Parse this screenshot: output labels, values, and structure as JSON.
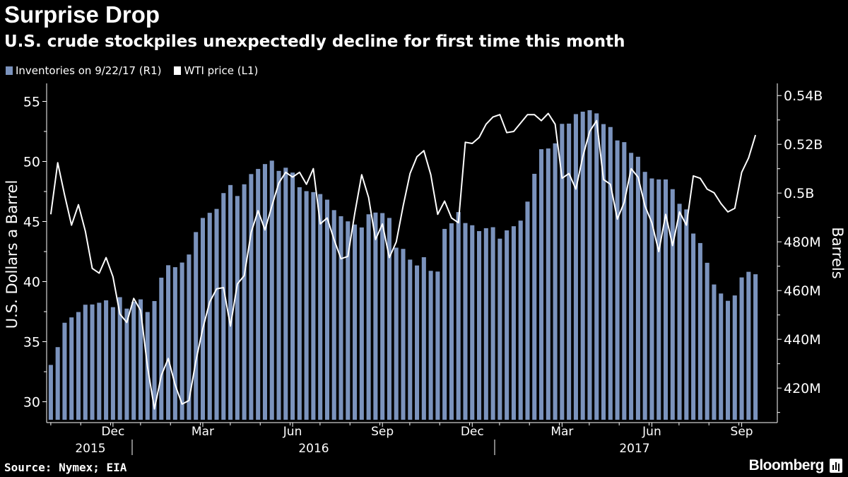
{
  "header": {
    "title": "Surprise Drop",
    "subtitle": "U.S. crude stockpiles unexpectedly decline for first time this month"
  },
  "legend": {
    "inventories": "Inventories on 9/22/17 (R1)",
    "wti": "WTI price (L1)"
  },
  "footer": {
    "source": "Source: Nymex; EIA",
    "brand": "Bloomberg"
  },
  "colors": {
    "bar": "#7b93bd",
    "line": "#ffffff",
    "background": "#000000",
    "axis": "#ffffff"
  },
  "chart_data": {
    "type": "bar",
    "title": "Surprise Drop",
    "subtitle": "U.S. crude stockpiles unexpectedly decline for first time this month",
    "ylabel_left": "U.S. Dollars a Barrel",
    "ylabel_right": "Barrels",
    "ylim_left": [
      28.5,
      56.5
    ],
    "ylim_right": [
      407,
      545
    ],
    "left_ticks": [
      "30",
      "35",
      "40",
      "45",
      "50",
      "55"
    ],
    "right_ticks": [
      "420M",
      "440M",
      "460M",
      "480M",
      "0.5B",
      "0.52B",
      "0.54B"
    ],
    "x_month_labels": [
      "Dec",
      "Mar",
      "Jun",
      "Sep",
      "Dec",
      "Mar",
      "Jun",
      "Sep"
    ],
    "x_year_labels": [
      "2015",
      "2016",
      "2017"
    ],
    "grid": false,
    "legend_position": "top-left",
    "series": [
      {
        "name": "Inventories on 9/22/17 (R1)",
        "axis": "right",
        "chart_type": "bar",
        "values": [
          429.5,
          436.8,
          446.8,
          449.0,
          451.2,
          454.2,
          454.3,
          455.0,
          456.0,
          453.2,
          457.3,
          452.6,
          455.4,
          456.4,
          451.2,
          455.7,
          465.3,
          470.4,
          469.6,
          471.5,
          474.8,
          484.0,
          489.8,
          491.9,
          493.5,
          500.0,
          503.3,
          498.8,
          503.6,
          507.8,
          509.9,
          511.9,
          513.3,
          509.1,
          510.4,
          508.4,
          502.4,
          500.8,
          500.4,
          499.6,
          497.3,
          493.0,
          490.5,
          488.4,
          487.1,
          485.9,
          491.3,
          492.0,
          491.8,
          489.8,
          477.6,
          477.1,
          472.7,
          470.3,
          473.7,
          468.1,
          467.8,
          485.3,
          487.6,
          492.2,
          487.7,
          486.8,
          484.4,
          485.6,
          486.0,
          481.3,
          484.7,
          486.4,
          488.7,
          496.5,
          507.9,
          518.0,
          518.3,
          520.4,
          528.4,
          528.5,
          532.4,
          533.4,
          534.0,
          532.7,
          528.3,
          527.1,
          521.6,
          520.9,
          516.5,
          514.9,
          508.7,
          506.0,
          505.6,
          505.6,
          501.6,
          495.6,
          493.3,
          483.4,
          479.5,
          471.4,
          462.5,
          458.8,
          455.8,
          458.0,
          465.4,
          467.7,
          466.7
        ]
      },
      {
        "name": "WTI price (L1)",
        "axis": "left",
        "chart_type": "line",
        "values": [
          45.6,
          49.9,
          47.2,
          44.7,
          46.4,
          44.2,
          41.1,
          40.7,
          42.0,
          40.4,
          37.3,
          36.6,
          38.6,
          37.6,
          32.9,
          29.4,
          32.2,
          33.6,
          31.4,
          29.8,
          30.1,
          33.4,
          36.1,
          38.3,
          39.4,
          39.5,
          36.3,
          39.8,
          40.5,
          44.1,
          45.9,
          44.3,
          46.3,
          48.2,
          49.1,
          48.7,
          49.1,
          48.1,
          49.4,
          44.8,
          45.3,
          43.5,
          41.9,
          42.1,
          45.7,
          48.9,
          47.0,
          43.5,
          44.8,
          42.0,
          43.3,
          46.3,
          49.0,
          50.4,
          50.9,
          48.9,
          45.6,
          46.7,
          45.3,
          44.9,
          51.6,
          51.5,
          52.0,
          53.1,
          53.7,
          53.9,
          52.4,
          52.5,
          53.2,
          53.9,
          53.9,
          53.4,
          54.0,
          53.1,
          48.6,
          49.0,
          47.7,
          50.4,
          52.5,
          53.4,
          48.5,
          48.1,
          45.2,
          46.6,
          49.4,
          48.7,
          46.3,
          44.9,
          42.5,
          45.6,
          43.0,
          45.8,
          44.7,
          48.8,
          48.6,
          47.7,
          47.4,
          46.5,
          45.8,
          46.1,
          49.1,
          50.3,
          52.2
        ]
      }
    ]
  }
}
